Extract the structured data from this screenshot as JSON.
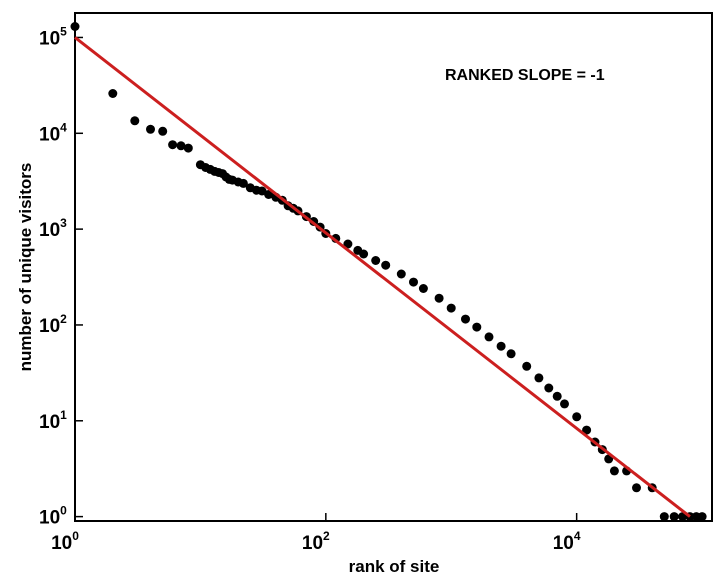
{
  "chart_data": {
    "type": "scatter",
    "title": "",
    "xlabel": "rank of site",
    "ylabel": "number of unique visitors",
    "xscale": "log",
    "yscale": "log",
    "xlim": [
      1,
      120000
    ],
    "ylim": [
      0.9,
      180000
    ],
    "grid": false,
    "x_ticks": [
      {
        "base": "10",
        "exp": "0",
        "value": 1
      },
      {
        "base": "10",
        "exp": "2",
        "value": 100
      },
      {
        "base": "10",
        "exp": "4",
        "value": 10000
      }
    ],
    "y_ticks": [
      {
        "base": "10",
        "exp": "0",
        "value": 1
      },
      {
        "base": "10",
        "exp": "1",
        "value": 10
      },
      {
        "base": "10",
        "exp": "2",
        "value": 100
      },
      {
        "base": "10",
        "exp": "3",
        "value": 1000
      },
      {
        "base": "10",
        "exp": "4",
        "value": 10000
      },
      {
        "base": "10",
        "exp": "5",
        "value": 100000
      }
    ],
    "annotation": "RANKED SLOPE = -1",
    "marker_color": "#000000",
    "fit_color": "#cc1f1f",
    "series": [
      {
        "type": "scatter",
        "points": [
          [
            1,
            130000
          ],
          [
            2,
            26000
          ],
          [
            3,
            13500
          ],
          [
            4,
            11000
          ],
          [
            5,
            10500
          ],
          [
            6,
            7600
          ],
          [
            7,
            7400
          ],
          [
            8,
            7000
          ],
          [
            10,
            4700
          ],
          [
            11,
            4400
          ],
          [
            12,
            4200
          ],
          [
            13,
            4000
          ],
          [
            14,
            3900
          ],
          [
            15,
            3800
          ],
          [
            16,
            3500
          ],
          [
            17,
            3300
          ],
          [
            18,
            3250
          ],
          [
            20,
            3100
          ],
          [
            22,
            3000
          ],
          [
            25,
            2700
          ],
          [
            28,
            2550
          ],
          [
            31,
            2500
          ],
          [
            35,
            2300
          ],
          [
            40,
            2150
          ],
          [
            45,
            2000
          ],
          [
            50,
            1750
          ],
          [
            55,
            1650
          ],
          [
            60,
            1550
          ],
          [
            70,
            1350
          ],
          [
            80,
            1200
          ],
          [
            90,
            1050
          ],
          [
            100,
            900
          ],
          [
            120,
            800
          ],
          [
            150,
            700
          ],
          [
            180,
            600
          ],
          [
            200,
            550
          ],
          [
            250,
            470
          ],
          [
            300,
            420
          ],
          [
            400,
            340
          ],
          [
            500,
            280
          ],
          [
            600,
            240
          ],
          [
            800,
            190
          ],
          [
            1000,
            150
          ],
          [
            1300,
            115
          ],
          [
            1600,
            95
          ],
          [
            2000,
            75
          ],
          [
            2500,
            60
          ],
          [
            3000,
            50
          ],
          [
            4000,
            37
          ],
          [
            5000,
            28
          ],
          [
            6000,
            22
          ],
          [
            7000,
            18
          ],
          [
            8000,
            15
          ],
          [
            10000,
            11
          ],
          [
            12000,
            8
          ],
          [
            14000,
            6
          ],
          [
            16000,
            5
          ],
          [
            18000,
            4
          ],
          [
            20000,
            3
          ],
          [
            25000,
            3
          ],
          [
            30000,
            2
          ],
          [
            40000,
            2
          ],
          [
            50000,
            1
          ],
          [
            60000,
            1
          ],
          [
            70000,
            1
          ],
          [
            80000,
            1
          ],
          [
            90000,
            1
          ],
          [
            100000,
            1
          ]
        ]
      },
      {
        "type": "line",
        "points": [
          [
            1,
            100000
          ],
          [
            80000,
            1
          ]
        ]
      }
    ]
  }
}
